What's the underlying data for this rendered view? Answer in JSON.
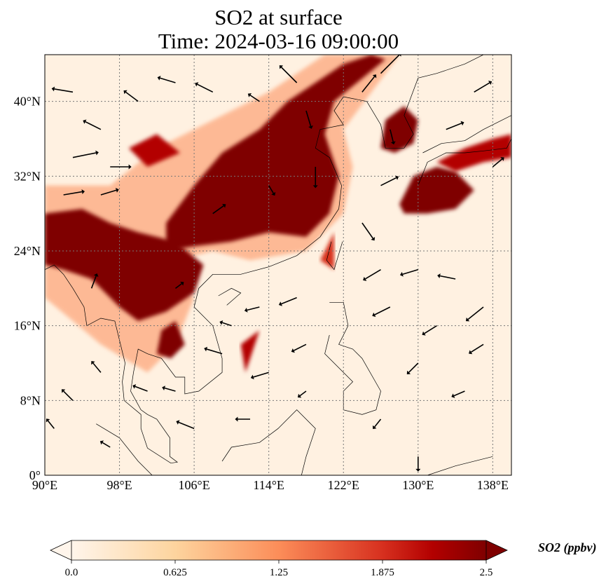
{
  "title_line1": "SO2 at surface",
  "title_line2": "Time: 2024-03-16 09:00:00",
  "chart_data": {
    "type": "map",
    "title": "SO2 at surface\nTime: 2024-03-16 09:00:00",
    "lon_range": [
      90,
      140
    ],
    "lat_range": [
      0,
      45
    ],
    "x_ticks": [
      {
        "value": 90,
        "label": "90°E"
      },
      {
        "value": 98,
        "label": "98°E"
      },
      {
        "value": 106,
        "label": "106°E"
      },
      {
        "value": 114,
        "label": "114°E"
      },
      {
        "value": 122,
        "label": "122°E"
      },
      {
        "value": 130,
        "label": "130°E"
      },
      {
        "value": 138,
        "label": "138°E"
      }
    ],
    "y_ticks": [
      {
        "value": 0,
        "label": "0°"
      },
      {
        "value": 8,
        "label": "8°N"
      },
      {
        "value": 16,
        "label": "16°N"
      },
      {
        "value": 24,
        "label": "24°N"
      },
      {
        "value": 32,
        "label": "32°N"
      },
      {
        "value": 40,
        "label": "40°N"
      }
    ],
    "grid": true,
    "colorbar": {
      "label": "SO2 (ppbv)",
      "range": [
        0.0,
        2.5
      ],
      "extend": "both",
      "ticks": [
        "0.0",
        "0.625",
        "1.25",
        "1.875",
        "2.5"
      ],
      "colors": [
        "#fff5eb",
        "#fdd49e",
        "#fc8d59",
        "#d7301f",
        "#b30000",
        "#7f0000"
      ]
    },
    "so2_fields": [
      {
        "level": 1.0,
        "poly": [
          [
            100,
            22
          ],
          [
            104,
            23
          ],
          [
            108,
            24
          ],
          [
            112,
            23
          ],
          [
            118,
            24
          ],
          [
            122,
            28
          ],
          [
            123,
            33
          ],
          [
            122,
            37
          ],
          [
            125,
            41
          ],
          [
            128,
            45
          ],
          [
            120,
            45
          ],
          [
            114,
            41
          ],
          [
            108,
            38
          ],
          [
            102,
            35
          ],
          [
            97,
            31
          ],
          [
            90,
            31
          ],
          [
            90,
            19
          ],
          [
            96,
            14
          ],
          [
            101,
            11
          ],
          [
            104,
            14
          ],
          [
            106,
            19
          ]
        ]
      },
      {
        "level": 2.5,
        "poly": [
          [
            103,
            27
          ],
          [
            106,
            31
          ],
          [
            109,
            34.5
          ],
          [
            113,
            37
          ],
          [
            116,
            40
          ],
          [
            119,
            42
          ],
          [
            122,
            44
          ],
          [
            125,
            45
          ],
          [
            126.5,
            44.5
          ],
          [
            121,
            40
          ],
          [
            120,
            36.5
          ],
          [
            121.5,
            32
          ],
          [
            120.5,
            28
          ],
          [
            118,
            25.5
          ],
          [
            114,
            26
          ],
          [
            110,
            25
          ],
          [
            106,
            24.5
          ],
          [
            103,
            24
          ]
        ]
      },
      {
        "level": 2.5,
        "poly": [
          [
            90,
            28
          ],
          [
            94,
            28.5
          ],
          [
            97,
            27
          ],
          [
            100,
            26
          ],
          [
            104,
            25
          ],
          [
            107,
            22.5
          ],
          [
            106,
            19.5
          ],
          [
            103,
            17.5
          ],
          [
            100,
            16.5
          ],
          [
            98,
            18
          ],
          [
            95,
            21
          ],
          [
            92,
            22
          ],
          [
            90,
            22.5
          ]
        ]
      },
      {
        "level": 2.5,
        "poly": [
          [
            102.5,
            15.5
          ],
          [
            104,
            16.5
          ],
          [
            105,
            14
          ],
          [
            103.5,
            12.5
          ],
          [
            102,
            13
          ]
        ]
      },
      {
        "level": 2.5,
        "poly": [
          [
            126,
            35
          ],
          [
            126.5,
            38
          ],
          [
            128.5,
            39.5
          ],
          [
            130,
            38
          ],
          [
            129.5,
            35.5
          ],
          [
            127.5,
            34.5
          ]
        ]
      },
      {
        "level": 2.5,
        "poly": [
          [
            128,
            29
          ],
          [
            129.5,
            32
          ],
          [
            132,
            33
          ],
          [
            134,
            32.5
          ],
          [
            136,
            30.5
          ],
          [
            134,
            28.5
          ],
          [
            131,
            28
          ],
          [
            128.5,
            28
          ]
        ]
      },
      {
        "level": 1.9,
        "poly": [
          [
            132,
            33.5
          ],
          [
            135,
            35
          ],
          [
            138,
            36
          ],
          [
            140,
            36.5
          ],
          [
            140,
            34
          ],
          [
            137,
            33.5
          ],
          [
            134,
            32.5
          ]
        ]
      },
      {
        "level": 2.0,
        "poly": [
          [
            99,
            35
          ],
          [
            102,
            36.5
          ],
          [
            104.5,
            34.5
          ],
          [
            101,
            33
          ]
        ]
      },
      {
        "level": 1.8,
        "poly": [
          [
            111,
            14
          ],
          [
            113,
            15.5
          ],
          [
            111.5,
            11
          ]
        ]
      },
      {
        "level": 1.6,
        "poly": [
          [
            119.5,
            23
          ],
          [
            121,
            26
          ],
          [
            121,
            22
          ]
        ]
      }
    ],
    "coastlines": [
      [
        [
          124.5,
          40
        ],
        [
          122,
          40.5
        ],
        [
          121,
          39
        ],
        [
          122,
          37.5
        ],
        [
          119.5,
          37
        ],
        [
          119,
          35
        ],
        [
          120.5,
          34
        ],
        [
          121.8,
          31
        ],
        [
          121.5,
          28.5
        ],
        [
          119.5,
          25.5
        ],
        [
          117,
          23.5
        ],
        [
          114,
          22.3
        ],
        [
          111,
          21.5
        ],
        [
          109.5,
          21.5
        ],
        [
          108,
          21.5
        ],
        [
          106.5,
          20
        ],
        [
          106,
          18
        ],
        [
          108,
          16
        ],
        [
          109,
          12.5
        ],
        [
          109,
          11
        ],
        [
          106.5,
          9
        ],
        [
          105,
          8.7
        ],
        [
          105,
          10.5
        ],
        [
          104,
          10.5
        ],
        [
          102.5,
          12.5
        ],
        [
          101,
          13
        ],
        [
          100,
          13.5
        ],
        [
          99.5,
          11
        ],
        [
          99.2,
          9
        ],
        [
          100.3,
          7
        ],
        [
          101,
          6.5
        ],
        [
          102,
          6
        ],
        [
          103.4,
          4
        ],
        [
          103.4,
          2
        ],
        [
          104.2,
          1.4
        ],
        [
          103.5,
          1.3
        ],
        [
          101,
          2.9
        ],
        [
          100.3,
          5
        ],
        [
          100.3,
          6.5
        ],
        [
          98.5,
          8
        ],
        [
          98.3,
          10
        ],
        [
          98.6,
          12
        ],
        [
          97.5,
          16.5
        ],
        [
          96,
          16.8
        ],
        [
          94.5,
          16
        ],
        [
          94.2,
          18
        ],
        [
          93,
          20
        ],
        [
          92,
          21.5
        ],
        [
          91,
          22.5
        ],
        [
          90,
          22
        ]
      ],
      [
        [
          124.5,
          40
        ],
        [
          126,
          37.5
        ],
        [
          126.5,
          35
        ],
        [
          128.5,
          35
        ],
        [
          129.5,
          36.5
        ],
        [
          128.5,
          38.5
        ],
        [
          130,
          42.5
        ],
        [
          132,
          43
        ],
        [
          135,
          44
        ],
        [
          137,
          45
        ]
      ],
      [
        [
          121.9,
          25
        ],
        [
          121,
          22
        ],
        [
          120.2,
          23
        ],
        [
          120.7,
          25
        ]
      ],
      [
        [
          108.6,
          19.2
        ],
        [
          110,
          20
        ],
        [
          111,
          19.5
        ],
        [
          109.5,
          18.2
        ]
      ],
      [
        [
          130,
          31
        ],
        [
          131,
          33.5
        ],
        [
          133,
          34.5
        ],
        [
          135,
          34.5
        ],
        [
          137,
          34.7
        ],
        [
          139.5,
          35
        ],
        [
          140,
          36
        ],
        [
          140,
          38.5
        ],
        [
          139,
          38
        ],
        [
          137,
          37
        ],
        [
          135,
          35.8
        ],
        [
          132.5,
          35.5
        ],
        [
          130.5,
          34.5
        ]
      ],
      [
        [
          120.5,
          18.5
        ],
        [
          122,
          18.5
        ],
        [
          122.5,
          16
        ],
        [
          121.5,
          14
        ],
        [
          123,
          13.5
        ],
        [
          124,
          12.5
        ],
        [
          126,
          9
        ],
        [
          125.5,
          7
        ],
        [
          124,
          6.5
        ],
        [
          122,
          7
        ],
        [
          122,
          9
        ],
        [
          123,
          10
        ],
        [
          120,
          13
        ],
        [
          120.5,
          15
        ]
      ],
      [
        [
          109,
          1.5
        ],
        [
          110,
          3
        ],
        [
          113,
          3.5
        ],
        [
          115,
          5
        ],
        [
          117,
          7
        ],
        [
          119,
          5
        ],
        [
          118,
          2
        ],
        [
          117.5,
          0
        ]
      ],
      [
        [
          95.5,
          5.5
        ],
        [
          98,
          4
        ],
        [
          100,
          1.5
        ],
        [
          101.5,
          0
        ]
      ],
      [
        [
          131,
          0
        ],
        [
          134,
          1
        ],
        [
          138,
          2
        ]
      ]
    ],
    "wind_vectors": [
      [
        93,
        41,
        -1.2,
        0.2
      ],
      [
        96,
        37,
        -1,
        0.5
      ],
      [
        93,
        34,
        1.5,
        0.3
      ],
      [
        97,
        33,
        1.2,
        0
      ],
      [
        92,
        30,
        1.2,
        0.2
      ],
      [
        96,
        30,
        1,
        0.3
      ],
      [
        100,
        40,
        -0.8,
        0.6
      ],
      [
        104,
        42,
        -1,
        0.3
      ],
      [
        108,
        41,
        -1,
        0.5
      ],
      [
        113,
        40,
        -0.6,
        0.4
      ],
      [
        117,
        42,
        -1,
        1
      ],
      [
        118,
        39,
        0.3,
        -1
      ],
      [
        119,
        33,
        0,
        -1.2
      ],
      [
        124,
        41,
        0.8,
        1
      ],
      [
        126,
        43,
        1.2,
        1.2
      ],
      [
        127,
        37,
        0.2,
        -0.8
      ],
      [
        126,
        31,
        1,
        0.5
      ],
      [
        133,
        37,
        1,
        0.4
      ],
      [
        136,
        41,
        1,
        0.6
      ],
      [
        138,
        33,
        0.6,
        0.5
      ],
      [
        124,
        27,
        0.7,
        -1
      ],
      [
        126,
        22,
        -1,
        -0.6
      ],
      [
        130,
        22,
        -1,
        -0.3
      ],
      [
        134,
        21,
        -1,
        0.2
      ],
      [
        127,
        18,
        -1,
        -0.5
      ],
      [
        132,
        16,
        -0.8,
        -0.5
      ],
      [
        137,
        18,
        -1,
        -0.8
      ],
      [
        137,
        14,
        -0.8,
        -0.5
      ],
      [
        130,
        12,
        -0.6,
        -0.6
      ],
      [
        117,
        19,
        -1,
        -0.4
      ],
      [
        113,
        18,
        -0.8,
        -0.2
      ],
      [
        118,
        14,
        -0.8,
        -0.4
      ],
      [
        114,
        11,
        -1,
        -0.3
      ],
      [
        109,
        13,
        -1,
        0.3
      ],
      [
        112,
        6,
        -0.8,
        0
      ],
      [
        106,
        5,
        -1,
        0.4
      ],
      [
        101,
        9,
        -0.8,
        0.3
      ],
      [
        96,
        11,
        -0.5,
        0.6
      ],
      [
        93,
        8,
        -0.6,
        0.6
      ],
      [
        91,
        5,
        -0.4,
        0.5
      ],
      [
        97,
        3,
        -0.5,
        0.3
      ],
      [
        104,
        9,
        -0.7,
        0.2
      ],
      [
        118,
        9,
        -0.4,
        -0.3
      ],
      [
        126,
        6,
        -0.4,
        -0.5
      ],
      [
        130,
        2,
        0,
        -0.8
      ],
      [
        135,
        9,
        -0.7,
        -0.3
      ],
      [
        104,
        20,
        0.4,
        0.3
      ],
      [
        110,
        16,
        -0.6,
        0.2
      ],
      [
        95,
        20,
        0.3,
        0.8
      ],
      [
        108,
        28,
        0.7,
        0.5
      ],
      [
        114,
        31,
        0.3,
        -0.5
      ]
    ]
  }
}
